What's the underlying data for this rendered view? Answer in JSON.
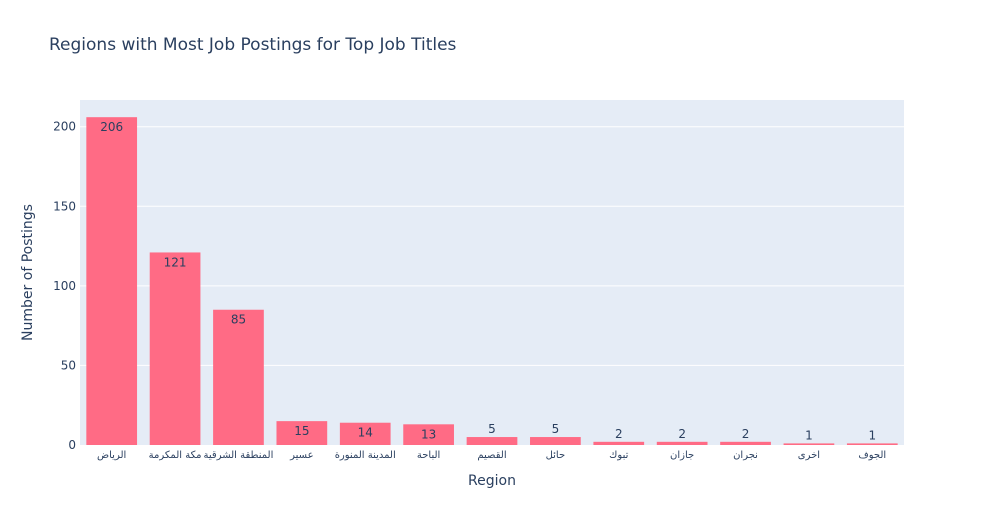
{
  "chart_data": {
    "type": "bar",
    "title": "Regions with Most Job Postings for Top Job Titles",
    "xlabel": "Region",
    "ylabel": "Number of Postings",
    "categories": [
      "الرياض",
      "مكة المكرمة",
      "المنطقة الشرقية",
      "عسير",
      "المدينة المنورة",
      "الباحة",
      "القصيم",
      "حائل",
      "تبوك",
      "جازان",
      "نجران",
      "اخرى",
      "الجوف"
    ],
    "values": [
      206,
      121,
      85,
      15,
      14,
      13,
      5,
      5,
      2,
      2,
      2,
      1,
      1
    ],
    "ylim": [
      0,
      216.8
    ],
    "yticks": [
      0,
      50,
      100,
      150,
      200
    ],
    "grid": true,
    "bar_color": "#ff6b85",
    "plot_bg": "#e5ecf6",
    "text_color": "#2a3f5f"
  }
}
